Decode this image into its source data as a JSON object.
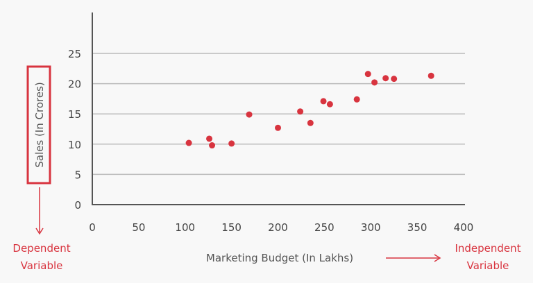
{
  "chart_data": {
    "type": "scatter",
    "xlabel": "Marketing Budget (In Lakhs)",
    "ylabel": "Sales (In Crores)",
    "xlim": [
      0,
      400
    ],
    "ylim": [
      0,
      25
    ],
    "x_ticks": [
      "0",
      "50",
      "100",
      "150",
      "200",
      "250",
      "300",
      "350",
      "400"
    ],
    "y_ticks": [
      "0",
      "5",
      "10",
      "15",
      "20",
      "25"
    ],
    "grid": "horizontal",
    "point_color": "#d8343f",
    "points": [
      {
        "x": 104,
        "y": 10.2
      },
      {
        "x": 126,
        "y": 10.9
      },
      {
        "x": 129,
        "y": 9.8
      },
      {
        "x": 150,
        "y": 10.1
      },
      {
        "x": 169,
        "y": 14.9
      },
      {
        "x": 200,
        "y": 12.7
      },
      {
        "x": 224,
        "y": 15.4
      },
      {
        "x": 235,
        "y": 13.5
      },
      {
        "x": 249,
        "y": 17.1
      },
      {
        "x": 256,
        "y": 16.6
      },
      {
        "x": 285,
        "y": 17.4
      },
      {
        "x": 297,
        "y": 21.6
      },
      {
        "x": 304,
        "y": 20.2
      },
      {
        "x": 316,
        "y": 20.9
      },
      {
        "x": 325,
        "y": 20.8
      },
      {
        "x": 365,
        "y": 21.3
      }
    ],
    "annotations": {
      "dependent": [
        "Dependent",
        "Variable"
      ],
      "independent": [
        "Independent",
        "Variable"
      ]
    },
    "annotation_color": "#d8343f"
  }
}
